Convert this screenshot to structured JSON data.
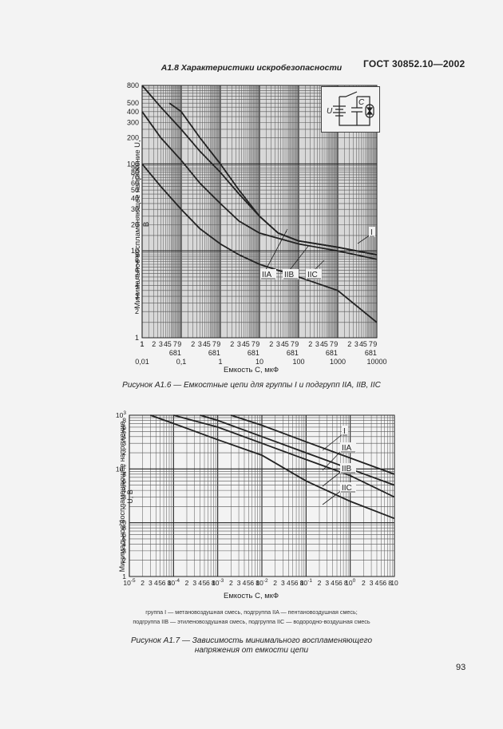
{
  "header": {
    "standard": "ГОСТ 30852.10—2002"
  },
  "section_title": "A1.8 Характеристики искробезопасности",
  "figure_a16": {
    "caption": "Рисунок A1.6 — Емкостные цепи для группы I и подгрупп IIA, IIB, IIC",
    "xlabel": "Емкость C, мкФ",
    "ylabel": "Минимальное воспламеняющее напряжение U, В",
    "circuit_labels": {
      "u": "U",
      "c": "C"
    }
  },
  "figure_a17": {
    "caption_line1": "Рисунок A1.7 — Зависимость минимального воспламеняющего",
    "caption_line2": "напряжения от емкости цепи",
    "xlabel": "Емкость C, мкФ",
    "ylabel": "Минимальное воспламеняющее напряжение U, В",
    "legend_line1": "группа I — метановоздушная смесь, подгруппа IIA — пентановоздушная смесь;",
    "legend_line2": "подгруппа IIB — этиленовоздушная смесь, подгруппа IIC — водородно-воздушная смесь"
  },
  "page_number": "93",
  "chart_data": [
    {
      "type": "line",
      "title": "Рисунок A1.6 — Емкостные цепи для группы I и подгрупп IIA, IIB, IIC",
      "xlabel": "Емкость C, мкФ",
      "ylabel": "Минимальное воспламеняющее напряжение U, В",
      "xscale": "log",
      "yscale": "log",
      "xlim": [
        0.01,
        10000
      ],
      "ylim": [
        1,
        800
      ],
      "x_tick_labels": [
        "0,01",
        "0,1",
        "1",
        "10",
        "100",
        "1000",
        "10000"
      ],
      "x_minor_labels": [
        "1",
        "2",
        "3",
        "4",
        "5",
        "6",
        "7",
        "8",
        "9"
      ],
      "y_tick_labels": [
        "1",
        "2",
        "3",
        "4",
        "5",
        "6",
        "7",
        "8",
        "9",
        "10",
        "20",
        "30",
        "40",
        "50",
        "60",
        "70",
        "80",
        "90",
        "100",
        "200",
        "300",
        "400",
        "500",
        "800"
      ],
      "grid": true,
      "series": [
        {
          "name": "I",
          "x": [
            0.05,
            0.1,
            0.3,
            1,
            3,
            10,
            30,
            100,
            1000,
            10000
          ],
          "y": [
            500,
            400,
            200,
            100,
            50,
            25,
            16,
            13,
            11,
            9
          ]
        },
        {
          "name": "IIA",
          "x": [
            0.01,
            0.03,
            0.1,
            0.3,
            1,
            3,
            10,
            30,
            100,
            1000,
            10000
          ],
          "y": [
            800,
            450,
            250,
            140,
            80,
            45,
            25,
            16,
            13,
            11,
            9
          ]
        },
        {
          "name": "IIB",
          "x": [
            0.01,
            0.03,
            0.1,
            0.3,
            1,
            3,
            10,
            100,
            1000,
            10000
          ],
          "y": [
            400,
            200,
            110,
            60,
            35,
            22,
            16,
            12,
            10,
            8
          ]
        },
        {
          "name": "IIC",
          "x": [
            0.01,
            0.03,
            0.1,
            0.3,
            1,
            3,
            10,
            100,
            1000,
            10000
          ],
          "y": [
            100,
            55,
            30,
            18,
            12,
            9,
            7,
            5,
            3.5,
            1.5
          ]
        }
      ],
      "annotations": [
        "I",
        "IIA",
        "IIB",
        "IIC"
      ],
      "inset": "circuit: battery U, switch, capacitor C, spark gap"
    },
    {
      "type": "line",
      "title": "Рисунок A1.7 — Зависимость минимального воспламеняющего напряжения от емкости цепи",
      "xlabel": "Емкость C, мкФ",
      "ylabel": "Минимальное воспламеняющее напряжение U, В",
      "xscale": "log",
      "yscale": "log",
      "xlim": [
        1e-05,
        10
      ],
      "ylim": [
        1,
        1000
      ],
      "x_tick_labels": [
        "10^-5",
        "2",
        "3",
        "4",
        "5",
        "6",
        "8",
        "10^-4",
        "2",
        "3",
        "4",
        "5",
        "6",
        "8",
        "10^-3",
        "2",
        "3",
        "4",
        "5",
        "6",
        "8",
        "10^-2",
        "2",
        "3",
        "4",
        "5",
        "6",
        "8",
        "10^-1",
        "2",
        "3",
        "4",
        "5",
        "6",
        "8",
        "10^0",
        "2",
        "3",
        "4",
        "5",
        "6",
        "8",
        "10"
      ],
      "y_tick_labels": [
        "1",
        "2",
        "3",
        "4",
        "5",
        "6",
        "8",
        "10",
        "2",
        "3",
        "4",
        "5",
        "6",
        "8",
        "10^2",
        "2",
        "3",
        "4",
        "5",
        "6",
        "8",
        "10^3"
      ],
      "grid": true,
      "series": [
        {
          "name": "I",
          "x": [
            0.002,
            0.01,
            0.1,
            1,
            10
          ],
          "y": [
            1000,
            650,
            320,
            160,
            80
          ]
        },
        {
          "name": "IIA",
          "x": [
            0.0004,
            0.001,
            0.01,
            0.1,
            1,
            10
          ],
          "y": [
            1000,
            800,
            400,
            200,
            100,
            50
          ]
        },
        {
          "name": "IIB",
          "x": [
            0.0001,
            0.001,
            0.01,
            0.1,
            1,
            10
          ],
          "y": [
            1000,
            600,
            300,
            150,
            75,
            30
          ]
        },
        {
          "name": "IIC",
          "x": [
            3e-05,
            0.0001,
            0.001,
            0.01,
            0.1,
            1,
            10
          ],
          "y": [
            1000,
            700,
            350,
            180,
            60,
            25,
            12
          ]
        }
      ],
      "annotations": [
        "I",
        "IIA",
        "IIB",
        "IIC"
      ]
    }
  ]
}
